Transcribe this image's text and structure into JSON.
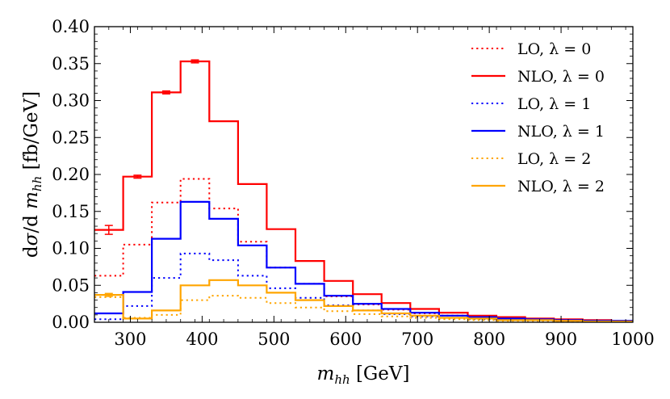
{
  "chart_data": {
    "type": "line",
    "step": true,
    "xlabel": "m_hh [GeV]",
    "ylabel": "dσ/d m_hh [fb/GeV]",
    "xlim": [
      250,
      1000
    ],
    "ylim": [
      0,
      0.4
    ],
    "xticks": [
      300,
      400,
      500,
      600,
      700,
      800,
      900,
      1000
    ],
    "xtick_labels": [
      "300",
      "400",
      "500",
      "600",
      "700",
      "800",
      "900",
      "1000"
    ],
    "yticks": [
      0.0,
      0.05,
      0.1,
      0.15,
      0.2,
      0.25,
      0.3,
      0.35,
      0.4
    ],
    "ytick_labels": [
      "0.00",
      "0.05",
      "0.10",
      "0.15",
      "0.20",
      "0.25",
      "0.30",
      "0.35",
      "0.40"
    ],
    "legend_position": "top-right",
    "bin_edges": [
      250,
      290,
      330,
      370,
      410,
      450,
      490,
      530,
      570,
      610,
      650,
      690,
      730,
      770,
      810,
      850,
      890,
      930,
      970,
      1000
    ],
    "series": [
      {
        "name": "LO, λ = 0",
        "color": "#ff0000",
        "style": "dotted",
        "values": [
          0.063,
          0.105,
          0.162,
          0.194,
          0.154,
          0.109,
          0.074,
          0.052,
          0.035,
          0.024,
          0.017,
          0.012,
          0.009,
          0.006,
          0.005,
          0.004,
          0.003,
          0.002,
          0.002
        ]
      },
      {
        "name": "NLO, λ = 0",
        "color": "#ff0000",
        "style": "solid",
        "values": [
          0.125,
          0.197,
          0.311,
          0.353,
          0.272,
          0.187,
          0.126,
          0.083,
          0.056,
          0.038,
          0.026,
          0.018,
          0.013,
          0.009,
          0.007,
          0.005,
          0.004,
          0.003,
          0.002
        ],
        "error_bars": [
          0.006,
          0.002,
          0.002,
          0.002
        ]
      },
      {
        "name": "LO, λ = 1",
        "color": "#0000ff",
        "style": "dotted",
        "values": [
          0.004,
          0.022,
          0.06,
          0.093,
          0.084,
          0.063,
          0.046,
          0.033,
          0.023,
          0.016,
          0.011,
          0.008,
          0.006,
          0.004,
          0.003,
          0.002,
          0.002,
          0.001,
          0.001
        ]
      },
      {
        "name": "NLO, λ = 1",
        "color": "#0000ff",
        "style": "solid",
        "values": [
          0.012,
          0.041,
          0.113,
          0.163,
          0.14,
          0.104,
          0.074,
          0.052,
          0.036,
          0.025,
          0.018,
          0.013,
          0.009,
          0.007,
          0.005,
          0.004,
          0.003,
          0.002,
          0.002
        ]
      },
      {
        "name": "LO, λ = 2",
        "color": "#ffa500",
        "style": "dotted",
        "values": [
          0.034,
          0.006,
          0.01,
          0.03,
          0.036,
          0.033,
          0.026,
          0.02,
          0.015,
          0.011,
          0.008,
          0.006,
          0.004,
          0.003,
          0.002,
          0.002,
          0.001,
          0.001,
          0.001
        ]
      },
      {
        "name": "NLO, λ = 2",
        "color": "#ffa500",
        "style": "solid",
        "values": [
          0.037,
          0.005,
          0.016,
          0.05,
          0.057,
          0.05,
          0.04,
          0.03,
          0.022,
          0.016,
          0.012,
          0.009,
          0.006,
          0.005,
          0.003,
          0.003,
          0.002,
          0.001,
          0.001
        ],
        "error_bars": [
          0.002
        ]
      }
    ]
  }
}
